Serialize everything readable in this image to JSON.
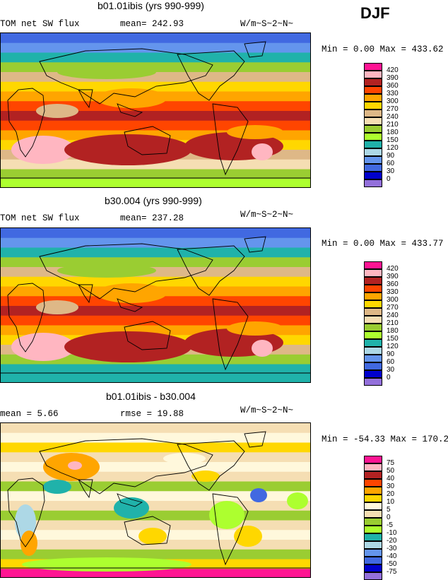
{
  "season": "DJF",
  "panels": [
    {
      "title": "b01.01ibis (yrs 990-999)",
      "left_label": "TOM net SW flux",
      "mid_label": "mean= 242.93",
      "units": "W/m~S~2~N~",
      "range_text": "Min =    0.00 Max = 433.62",
      "chart_data": {
        "type": "heatmap",
        "variable": "TOM net SW flux",
        "units": "W/m~S~2~N~",
        "mean": 242.93,
        "min": 0.0,
        "max": 433.62,
        "levels": [
          "420",
          "390",
          "360",
          "330",
          "300",
          "270",
          "240",
          "210",
          "180",
          "150",
          "120",
          "90",
          "60",
          "30",
          "0"
        ],
        "colors": [
          "#ff1493",
          "#ffb6c1",
          "#b22222",
          "#ff4500",
          "#ffa500",
          "#ffd700",
          "#deb887",
          "#f5deb3",
          "#9acd32",
          "#adff2f",
          "#20b2aa",
          "#add8e6",
          "#6495ed",
          "#4169e1",
          "#0000cd",
          "#9370db"
        ],
        "lat_bands": [
          30,
          60,
          120,
          180,
          240,
          270,
          300,
          330,
          360,
          330,
          300,
          270,
          240,
          210,
          180,
          150
        ]
      }
    },
    {
      "title": "b30.004 (yrs 990-999)",
      "left_label": "TOM net SW flux",
      "mid_label": "mean= 237.28",
      "units": "W/m~S~2~N~",
      "range_text": "Min =    0.00 Max = 433.77",
      "chart_data": {
        "type": "heatmap",
        "variable": "TOM net SW flux",
        "units": "W/m~S~2~N~",
        "mean": 237.28,
        "min": 0.0,
        "max": 433.77,
        "levels": [
          "420",
          "390",
          "360",
          "330",
          "300",
          "270",
          "240",
          "210",
          "180",
          "150",
          "120",
          "90",
          "60",
          "30",
          "0"
        ],
        "colors": [
          "#ff1493",
          "#ffb6c1",
          "#b22222",
          "#ff4500",
          "#ffa500",
          "#ffd700",
          "#deb887",
          "#f5deb3",
          "#9acd32",
          "#adff2f",
          "#20b2aa",
          "#add8e6",
          "#6495ed",
          "#4169e1",
          "#0000cd",
          "#9370db"
        ],
        "lat_bands": [
          30,
          60,
          120,
          180,
          240,
          270,
          300,
          330,
          360,
          330,
          300,
          270,
          240,
          180,
          120,
          120
        ]
      }
    },
    {
      "title": "b01.01ibis - b30.004",
      "left_label": "mean =    5.66",
      "mid_label": "rmse =   19.88",
      "units": "W/m~S~2~N~",
      "range_text": "Min = -54.33 Max = 170.28",
      "chart_data": {
        "type": "heatmap",
        "variable": "difference",
        "units": "W/m~S~2~N~",
        "mean": 5.66,
        "rmse": 19.88,
        "min": -54.33,
        "max": 170.28,
        "levels": [
          "75",
          "50",
          "40",
          "30",
          "20",
          "10",
          "5",
          "0",
          "-5",
          "-10",
          "-20",
          "-30",
          "-40",
          "-50",
          "-75"
        ],
        "colors": [
          "#ff1493",
          "#ffb6c1",
          "#b22222",
          "#ff4500",
          "#ffa500",
          "#ffd700",
          "#fff8dc",
          "#f5deb3",
          "#9acd32",
          "#adff2f",
          "#20b2aa",
          "#add8e6",
          "#6495ed",
          "#4169e1",
          "#0000cd",
          "#9370db"
        ],
        "lat_bands": [
          0,
          5,
          10,
          0,
          5,
          0,
          -5,
          5,
          0,
          -5,
          0,
          5,
          0,
          -5,
          10,
          75
        ]
      }
    }
  ]
}
